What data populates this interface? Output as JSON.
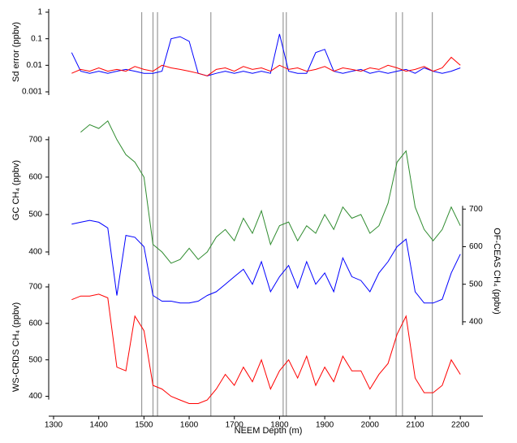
{
  "chart_data": [
    {
      "type": "line",
      "ylabel": "Sd error (ppbv)",
      "log": true,
      "axis_side": "left",
      "ylim": [
        0.001,
        1
      ],
      "yticks": [
        1,
        0.1,
        0.01,
        0.001
      ],
      "x": [
        1340,
        1360,
        1380,
        1400,
        1420,
        1440,
        1460,
        1480,
        1500,
        1520,
        1540,
        1560,
        1580,
        1600,
        1620,
        1640,
        1660,
        1680,
        1700,
        1720,
        1740,
        1760,
        1780,
        1800,
        1820,
        1840,
        1860,
        1880,
        1900,
        1920,
        1940,
        1960,
        1980,
        2000,
        2020,
        2040,
        2060,
        2080,
        2100,
        2120,
        2140,
        2160,
        2180,
        2200
      ],
      "series": [
        {
          "color": "#0000ff",
          "values": [
            0.03,
            0.006,
            0.005,
            0.006,
            0.005,
            0.006,
            0.007,
            0.006,
            0.005,
            0.005,
            0.006,
            0.1,
            0.12,
            0.08,
            0.005,
            0.004,
            0.005,
            0.006,
            0.005,
            0.006,
            0.005,
            0.006,
            0.005,
            0.15,
            0.006,
            0.005,
            0.005,
            0.03,
            0.04,
            0.006,
            0.005,
            0.006,
            0.007,
            0.005,
            0.006,
            0.005,
            0.006,
            0.007,
            0.005,
            0.008,
            0.006,
            0.005,
            0.006,
            0.008
          ]
        },
        {
          "color": "#ff0000",
          "values": [
            0.005,
            0.007,
            0.006,
            0.008,
            0.006,
            0.007,
            0.006,
            0.009,
            0.007,
            0.006,
            0.01,
            0.008,
            0.007,
            0.006,
            0.005,
            0.004,
            0.007,
            0.008,
            0.006,
            0.009,
            0.007,
            0.008,
            0.006,
            0.01,
            0.007,
            0.008,
            0.006,
            0.007,
            0.009,
            0.006,
            0.008,
            0.007,
            0.006,
            0.008,
            0.007,
            0.01,
            0.008,
            0.006,
            0.007,
            0.009,
            0.006,
            0.008,
            0.02,
            0.01
          ]
        }
      ]
    },
    {
      "type": "line",
      "ylabel": "GC CH₄ (ppbv)",
      "axis_side": "left",
      "ylim": [
        350,
        780
      ],
      "yticks": [
        400,
        500,
        600,
        700
      ],
      "x": [
        1360,
        1380,
        1400,
        1420,
        1440,
        1460,
        1480,
        1500,
        1520,
        1540,
        1560,
        1580,
        1600,
        1620,
        1640,
        1660,
        1680,
        1700,
        1720,
        1740,
        1760,
        1780,
        1800,
        1820,
        1840,
        1860,
        1880,
        1900,
        1920,
        1940,
        1960,
        1980,
        2000,
        2020,
        2040,
        2060,
        2080,
        2100,
        2120,
        2140,
        2160,
        2180,
        2200
      ],
      "series": [
        {
          "color": "#2e8b2e",
          "values": [
            720,
            740,
            730,
            750,
            700,
            660,
            640,
            600,
            420,
            400,
            370,
            380,
            410,
            380,
            400,
            440,
            460,
            430,
            490,
            450,
            510,
            420,
            470,
            480,
            430,
            470,
            450,
            500,
            460,
            520,
            490,
            500,
            450,
            470,
            530,
            640,
            670,
            520,
            460,
            430,
            460,
            520,
            470
          ]
        }
      ]
    },
    {
      "type": "line",
      "ylabel": "OF-CEAS CH₄ (ppbv)",
      "axis_side": "right",
      "ylim": [
        350,
        720
      ],
      "yticks": [
        400,
        500,
        600,
        700
      ],
      "x": [
        1340,
        1360,
        1380,
        1400,
        1420,
        1440,
        1460,
        1480,
        1500,
        1520,
        1540,
        1560,
        1580,
        1600,
        1620,
        1640,
        1660,
        1680,
        1700,
        1720,
        1740,
        1760,
        1780,
        1800,
        1820,
        1840,
        1860,
        1880,
        1900,
        1920,
        1940,
        1960,
        1980,
        2000,
        2020,
        2040,
        2060,
        2080,
        2100,
        2120,
        2140,
        2160,
        2180,
        2200
      ],
      "series": [
        {
          "color": "#0000ff",
          "values": [
            660,
            665,
            670,
            665,
            650,
            470,
            630,
            625,
            600,
            470,
            455,
            455,
            450,
            450,
            455,
            470,
            480,
            500,
            520,
            540,
            500,
            560,
            480,
            520,
            550,
            490,
            560,
            500,
            530,
            480,
            570,
            520,
            510,
            480,
            530,
            560,
            600,
            620,
            480,
            450,
            450,
            460,
            530,
            580
          ]
        }
      ]
    },
    {
      "type": "line",
      "ylabel": "WS-CRDS CH₄ (ppbv)",
      "axis_side": "left",
      "ylim": [
        350,
        720
      ],
      "yticks": [
        400,
        500,
        600,
        700
      ],
      "xlabel": "NEEM Depth (m)",
      "xlim": [
        1300,
        2250
      ],
      "xticks": [
        1300,
        1400,
        1500,
        1600,
        1700,
        1800,
        1900,
        2000,
        2100,
        2200
      ],
      "vlines": [
        1495,
        1520,
        1530,
        1648,
        1808,
        1815,
        2058,
        2072,
        2138
      ],
      "vline_color": "#999999",
      "x": [
        1340,
        1360,
        1380,
        1400,
        1420,
        1440,
        1460,
        1480,
        1500,
        1520,
        1540,
        1560,
        1580,
        1600,
        1620,
        1640,
        1660,
        1680,
        1700,
        1720,
        1740,
        1760,
        1780,
        1800,
        1820,
        1840,
        1860,
        1880,
        1900,
        1920,
        1940,
        1960,
        1980,
        2000,
        2020,
        2040,
        2060,
        2080,
        2100,
        2120,
        2140,
        2160,
        2180,
        2200
      ],
      "series": [
        {
          "color": "#ff0000",
          "values": [
            665,
            675,
            675,
            680,
            670,
            480,
            470,
            620,
            580,
            430,
            420,
            400,
            390,
            380,
            380,
            390,
            420,
            460,
            430,
            480,
            440,
            500,
            420,
            470,
            500,
            450,
            510,
            430,
            480,
            440,
            510,
            470,
            470,
            420,
            460,
            490,
            570,
            620,
            450,
            410,
            410,
            430,
            500,
            460
          ]
        }
      ]
    }
  ]
}
